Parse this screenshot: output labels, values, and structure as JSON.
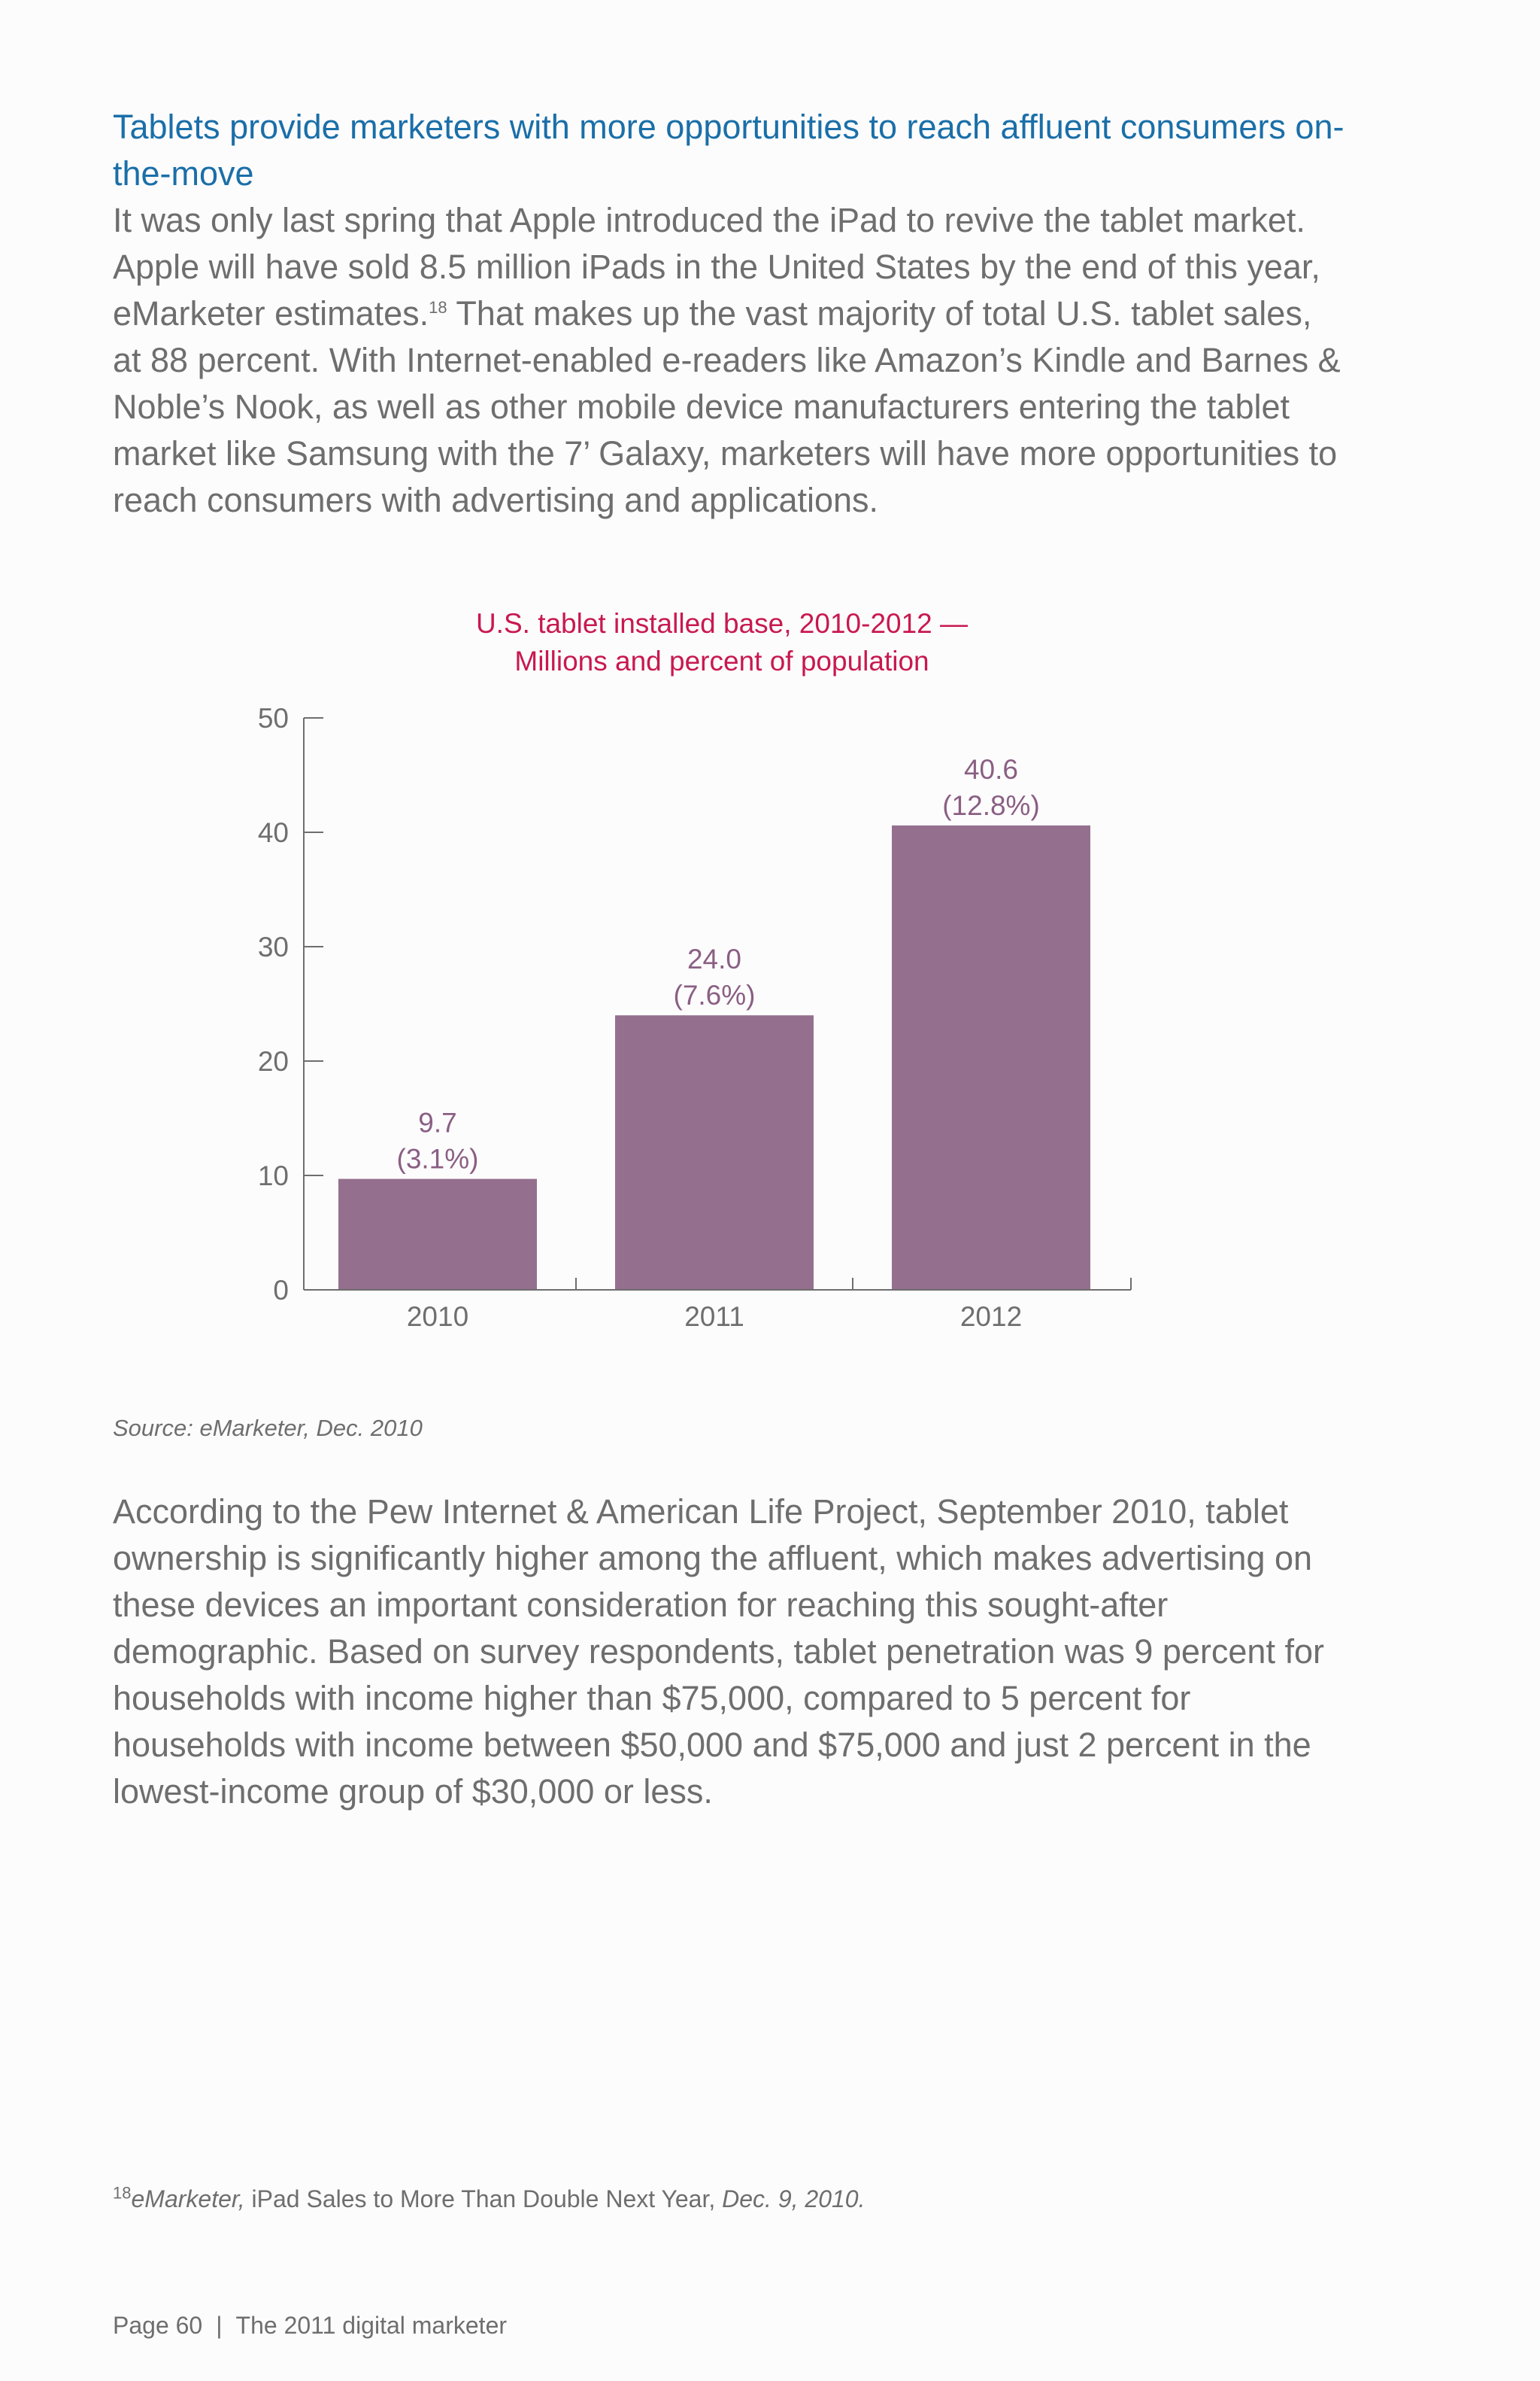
{
  "heading": "Tablets provide marketers with more opportunities to reach affluent consumers on-the-move",
  "para1": {
    "before_sup": "It was only last spring that Apple introduced the iPad to revive the tablet market. Apple will have sold 8.5 million iPads in the United States by the end of this year, eMarketer estimates.",
    "sup": "18",
    "after_sup": " That makes up the vast majority of total U.S. tablet sales, at 88 percent. With Internet-enabled e-readers like Amazon’s Kindle and Barnes & Noble’s Nook, as well as other mobile device manufacturers entering the tablet market like Samsung with the 7’ Galaxy, marketers will have more opportunities to reach consumers with advertising and applications."
  },
  "chart_data": {
    "type": "bar",
    "title_line1": "U.S. tablet installed base, 2010-2012 —",
    "title_line2": "Millions and percent of population",
    "categories": [
      "2010",
      "2011",
      "2012"
    ],
    "values": [
      9.7,
      24.0,
      40.6
    ],
    "value_labels": [
      "9.7",
      "24.0",
      "40.6"
    ],
    "percent_labels": [
      "(3.1%)",
      "(7.6%)",
      "(12.8%)"
    ],
    "ylim": [
      0,
      50
    ],
    "yticks": [
      0,
      10,
      20,
      30,
      40,
      50
    ],
    "ytick_labels": [
      "0",
      "10",
      "20",
      "30",
      "40",
      "50"
    ],
    "xlabel": "",
    "ylabel": "",
    "bar_color": "#95708e",
    "label_color": "#8a5f83",
    "axis_color": "#6e6e6e",
    "grid": false
  },
  "source": "Source: eMarketer, Dec. 2010",
  "para2": "According to the Pew Internet & American Life Project, September 2010, tablet ownership is significantly higher among the affluent, which makes advertising on these devices an important consideration for reaching this sought-after demographic. Based on survey respondents, tablet penetration was 9 percent for households with income higher than $75,000, compared to 5 percent for households with income between $50,000 and $75,000 and just 2 percent in the lowest-income group of $30,000 or less.",
  "footnote": {
    "number": "18",
    "publisher": "eMarketer,",
    "title": " iPad Sales to More Than Double Next Year,",
    "date": " Dec. 9, 2010."
  },
  "footer": {
    "page": "Page 60",
    "separator": "|",
    "publication": "The 2011 digital marketer"
  }
}
